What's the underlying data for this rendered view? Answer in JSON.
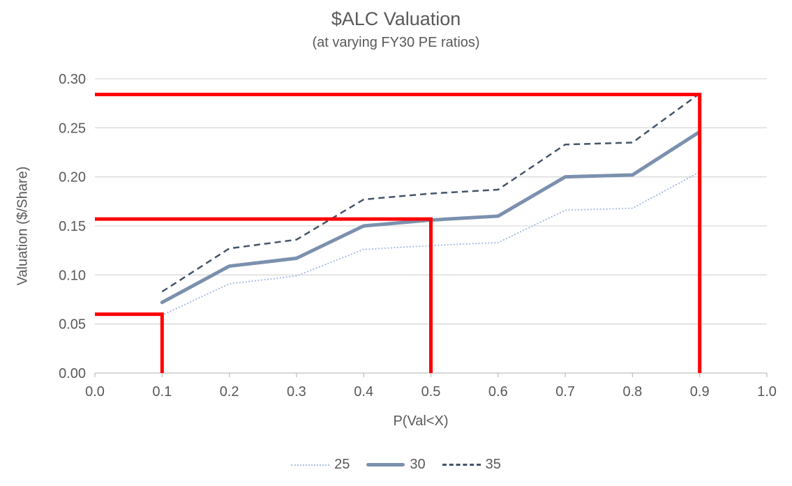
{
  "title": {
    "text": "$ALC Valuation",
    "subtitle": "(at varying FY30 PE ratios)"
  },
  "colors": {
    "text": "#595959",
    "gridline": "#D9D9D9",
    "axis_line": "#BFBFBF",
    "annotation_red": "#FF0000",
    "series_25": "#A9BEE2",
    "series_30": "#7C90AE",
    "series_35": "#44546A"
  },
  "chart_data": {
    "type": "line",
    "title": "$ALC Valuation",
    "subtitle": "(at varying FY30 PE ratios)",
    "xlabel": "P(Val<X)",
    "ylabel": "Valuation ($/Share)",
    "xlim": [
      0.0,
      1.0
    ],
    "ylim": [
      0.0,
      0.3
    ],
    "x_tick_labels": [
      "0.0",
      "0.1",
      "0.2",
      "0.3",
      "0.4",
      "0.5",
      "0.6",
      "0.7",
      "0.8",
      "0.9",
      "1.0"
    ],
    "y_tick_labels": [
      "0.00",
      "0.05",
      "0.10",
      "0.15",
      "0.20",
      "0.25",
      "0.30"
    ],
    "grid": "horizontal",
    "legend_position": "bottom",
    "x": [
      0.1,
      0.2,
      0.3,
      0.4,
      0.5,
      0.6,
      0.7,
      0.8,
      0.9
    ],
    "series": [
      {
        "name": "25",
        "line_style": "dotted",
        "color": "#A9BEE2",
        "width": 2.2,
        "values": [
          0.059,
          0.091,
          0.099,
          0.126,
          0.13,
          0.133,
          0.166,
          0.168,
          0.205
        ]
      },
      {
        "name": "30",
        "line_style": "solid",
        "color": "#7C90AE",
        "width": 5,
        "values": [
          0.072,
          0.109,
          0.117,
          0.15,
          0.156,
          0.16,
          0.2,
          0.202,
          0.246
        ]
      },
      {
        "name": "35",
        "line_style": "dashed",
        "color": "#44546A",
        "width": 2.5,
        "values": [
          0.083,
          0.127,
          0.136,
          0.177,
          0.183,
          0.187,
          0.233,
          0.235,
          0.285
        ]
      }
    ],
    "annotations": [
      {
        "name": "p10-threshold",
        "x": 0.1,
        "y": 0.06,
        "color": "#FF0000"
      },
      {
        "name": "p50-threshold",
        "x": 0.5,
        "y": 0.157,
        "color": "#FF0000"
      },
      {
        "name": "p90-threshold",
        "x": 0.9,
        "y": 0.284,
        "color": "#FF0000"
      }
    ]
  }
}
